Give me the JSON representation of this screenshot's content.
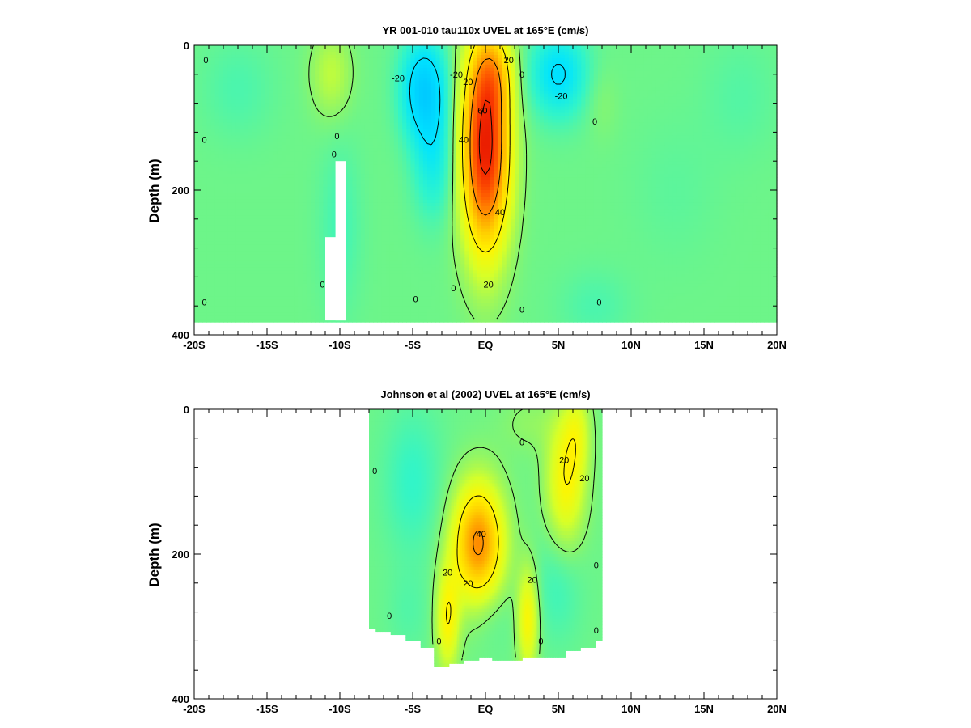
{
  "chart_data": [
    {
      "type": "heatmap",
      "title": "YR 001-010 tau110x UVEL at 165°E (cm/s)",
      "ylabel": "Depth (m)",
      "xlabel": "",
      "xlim": [
        -20,
        20
      ],
      "ylim": [
        400,
        0
      ],
      "x_tick_values": [
        -20,
        -15,
        -10,
        -5,
        0,
        5,
        10,
        15,
        20
      ],
      "x_tick_labels": [
        "-20S",
        "-15S",
        "-10S",
        "-5S",
        "EQ",
        "5N",
        "10N",
        "15N",
        "20N"
      ],
      "y_tick_values": [
        0,
        200,
        400
      ],
      "y_tick_labels": [
        "0",
        "200",
        "400"
      ],
      "contour_interval": 20,
      "bottom_depth": 380,
      "data_x_range": [
        -20,
        20
      ],
      "units": "cm/s",
      "features": [
        {
          "x": 0.0,
          "depth": 140,
          "dx": 1.6,
          "dz": 140,
          "value": 68
        },
        {
          "x": 0.6,
          "depth": 40,
          "dx": 1.3,
          "dz": 55,
          "value": 15
        },
        {
          "x": -4.2,
          "depth": 60,
          "dx": 1.6,
          "dz": 70,
          "value": -24
        },
        {
          "x": -3.5,
          "depth": 160,
          "dx": 1.5,
          "dz": 80,
          "value": -12
        },
        {
          "x": 5.0,
          "depth": 40,
          "dx": 2.0,
          "dz": 60,
          "value": -18
        },
        {
          "x": -10.6,
          "depth": 40,
          "dx": 1.4,
          "dz": 60,
          "value": 10
        },
        {
          "x": -10.0,
          "depth": 250,
          "dx": 1.5,
          "dz": 120,
          "value": -5
        },
        {
          "x": 8.0,
          "depth": 80,
          "dx": 1.1,
          "dz": 50,
          "value": 3
        },
        {
          "x": 17.5,
          "depth": 70,
          "dx": 2.5,
          "dz": 80,
          "value": -3
        },
        {
          "x": 13.0,
          "depth": 200,
          "dx": 3.0,
          "dz": 100,
          "value": -2
        },
        {
          "x": -17.0,
          "depth": 60,
          "dx": 2.5,
          "dz": 70,
          "value": -4
        },
        {
          "x": 7.5,
          "depth": 360,
          "dx": 2.5,
          "dz": 50,
          "value": -4
        }
      ],
      "masks": [
        {
          "x": [
            -10.3,
            -9.6
          ],
          "depth": [
            160,
            380
          ]
        },
        {
          "x": [
            -11.0,
            -9.6
          ],
          "depth": [
            265,
            380
          ]
        }
      ],
      "contour_labels": [
        {
          "text": "0",
          "x": -19.2,
          "depth": 20
        },
        {
          "text": "0",
          "x": -19.3,
          "depth": 130
        },
        {
          "text": "0",
          "x": -19.3,
          "depth": 355
        },
        {
          "text": "0",
          "x": -11.2,
          "depth": 330
        },
        {
          "text": "0",
          "x": -10.2,
          "depth": 125
        },
        {
          "text": "0",
          "x": -10.4,
          "depth": 150
        },
        {
          "text": "0",
          "x": -2.2,
          "depth": 335
        },
        {
          "text": "0",
          "x": -4.8,
          "depth": 350
        },
        {
          "text": "0",
          "x": 2.5,
          "depth": 40
        },
        {
          "text": "0",
          "x": 2.5,
          "depth": 365
        },
        {
          "text": "0",
          "x": 7.5,
          "depth": 105
        },
        {
          "text": "0",
          "x": 7.8,
          "depth": 355
        },
        {
          "text": "-20",
          "x": -6.0,
          "depth": 45
        },
        {
          "text": "-20",
          "x": -2.0,
          "depth": 40
        },
        {
          "text": "-20",
          "x": 5.2,
          "depth": 70
        },
        {
          "text": "20",
          "x": 1.6,
          "depth": 20
        },
        {
          "text": "20",
          "x": -1.2,
          "depth": 50
        },
        {
          "text": "20",
          "x": 0.2,
          "depth": 330
        },
        {
          "text": "40",
          "x": -1.5,
          "depth": 130
        },
        {
          "text": "40",
          "x": 1.0,
          "depth": 230
        },
        {
          "text": "60",
          "x": -0.2,
          "depth": 90
        }
      ]
    },
    {
      "type": "heatmap",
      "title": "Johnson et al (2002) UVEL at 165°E (cm/s)",
      "ylabel": "Depth (m)",
      "xlabel": "",
      "xlim": [
        -20,
        20
      ],
      "ylim": [
        400,
        0
      ],
      "x_tick_values": [
        -20,
        -15,
        -10,
        -5,
        0,
        5,
        10,
        15,
        20
      ],
      "x_tick_labels": [
        "-20S",
        "-15S",
        "-10S",
        "-5S",
        "EQ",
        "5N",
        "10N",
        "15N",
        "20N"
      ],
      "y_tick_values": [
        0,
        200,
        400
      ],
      "y_tick_labels": [
        "0",
        "200",
        "400"
      ],
      "contour_interval": 20,
      "data_x_range": [
        -8,
        8
      ],
      "units": "cm/s",
      "bottom_profile": [
        [
          -8,
          300
        ],
        [
          -7,
          305
        ],
        [
          -6,
          312
        ],
        [
          -5,
          320
        ],
        [
          -4,
          328
        ],
        [
          -3,
          355
        ],
        [
          -2,
          350
        ],
        [
          -1,
          345
        ],
        [
          0,
          342
        ],
        [
          1,
          345
        ],
        [
          2,
          345
        ],
        [
          3,
          342
        ],
        [
          4,
          342
        ],
        [
          5,
          342
        ],
        [
          6,
          335
        ],
        [
          7,
          330
        ],
        [
          8,
          322
        ]
      ],
      "features": [
        {
          "x": -0.5,
          "depth": 185,
          "dx": 1.7,
          "dz": 80,
          "value": 45
        },
        {
          "x": -2.6,
          "depth": 290,
          "dx": 0.8,
          "dz": 70,
          "value": 22
        },
        {
          "x": 2.9,
          "depth": 290,
          "dx": 0.7,
          "dz": 70,
          "value": 22
        },
        {
          "x": 5.5,
          "depth": 100,
          "dx": 1.3,
          "dz": 90,
          "value": 22
        },
        {
          "x": 6.3,
          "depth": 30,
          "dx": 0.9,
          "dz": 60,
          "value": 12
        },
        {
          "x": 3.0,
          "depth": 20,
          "dx": 2.0,
          "dz": 40,
          "value": 4
        },
        {
          "x": -5.0,
          "depth": 100,
          "dx": 2.0,
          "dz": 100,
          "value": -7
        },
        {
          "x": 5.0,
          "depth": 240,
          "dx": 1.6,
          "dz": 80,
          "value": -6
        },
        {
          "x": 0.3,
          "depth": 280,
          "dx": 1.5,
          "dz": 50,
          "value": -4
        },
        {
          "x": -5.3,
          "depth": 280,
          "dx": 1.5,
          "dz": 60,
          "value": -3
        }
      ],
      "contour_labels": [
        {
          "text": "0",
          "x": -7.6,
          "depth": 85
        },
        {
          "text": "0",
          "x": 2.5,
          "depth": 45
        },
        {
          "text": "0",
          "x": -6.6,
          "depth": 285
        },
        {
          "text": "0",
          "x": -3.2,
          "depth": 320
        },
        {
          "text": "0",
          "x": 3.8,
          "depth": 320
        },
        {
          "text": "0",
          "x": 7.6,
          "depth": 215
        },
        {
          "text": "0",
          "x": 7.6,
          "depth": 305
        },
        {
          "text": "20",
          "x": 5.4,
          "depth": 70
        },
        {
          "text": "20",
          "x": 6.8,
          "depth": 95
        },
        {
          "text": "20",
          "x": -2.6,
          "depth": 225
        },
        {
          "text": "20",
          "x": -1.2,
          "depth": 240
        },
        {
          "text": "20",
          "x": 3.2,
          "depth": 235
        },
        {
          "text": "40",
          "x": -0.3,
          "depth": 172
        }
      ]
    }
  ]
}
